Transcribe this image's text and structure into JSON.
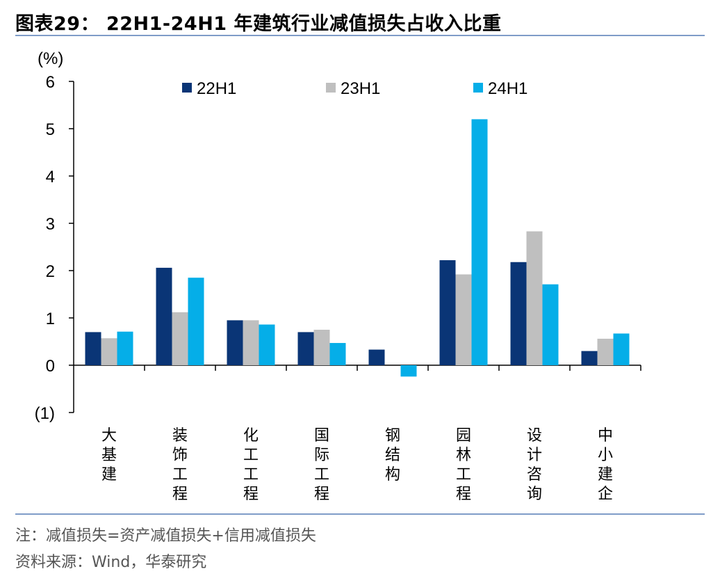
{
  "header": {
    "title": "图表29： 22H1-24H1 年建筑行业减值损失占收入比重"
  },
  "footer": {
    "note": "注：减值损失=资产减值损失+信用减值损失",
    "source": "资料来源：Wind，华泰研究"
  },
  "colors": {
    "series_22H1": "#0a3576",
    "series_23H1": "#bfbfbf",
    "series_24H1": "#05aee8",
    "rule": "#7f9cc8"
  },
  "chart_data": {
    "type": "bar",
    "title": "22H1-24H1 年建筑行业减值损失占收入比重",
    "ylabel": "(%)",
    "ylim": [
      -1,
      6
    ],
    "yticks": [
      6,
      5,
      4,
      3,
      2,
      1,
      0,
      -1
    ],
    "ytick_labels": [
      "6",
      "5",
      "4",
      "3",
      "2",
      "1",
      "0",
      "(1)"
    ],
    "grid": false,
    "legend_position": "top",
    "categories": [
      "大基建",
      "装饰工程",
      "化工工程",
      "国际工程",
      "钢结构",
      "园林工程",
      "设计咨询",
      "中小建企"
    ],
    "series": [
      {
        "name": "22H1",
        "values": [
          0.7,
          2.06,
          0.95,
          0.7,
          0.33,
          2.22,
          2.18,
          0.3
        ]
      },
      {
        "name": "23H1",
        "values": [
          0.57,
          1.12,
          0.95,
          0.75,
          0.0,
          1.92,
          2.83,
          0.56
        ]
      },
      {
        "name": "24H1",
        "values": [
          0.71,
          1.85,
          0.86,
          0.47,
          -0.24,
          5.2,
          1.71,
          0.67
        ]
      }
    ]
  }
}
